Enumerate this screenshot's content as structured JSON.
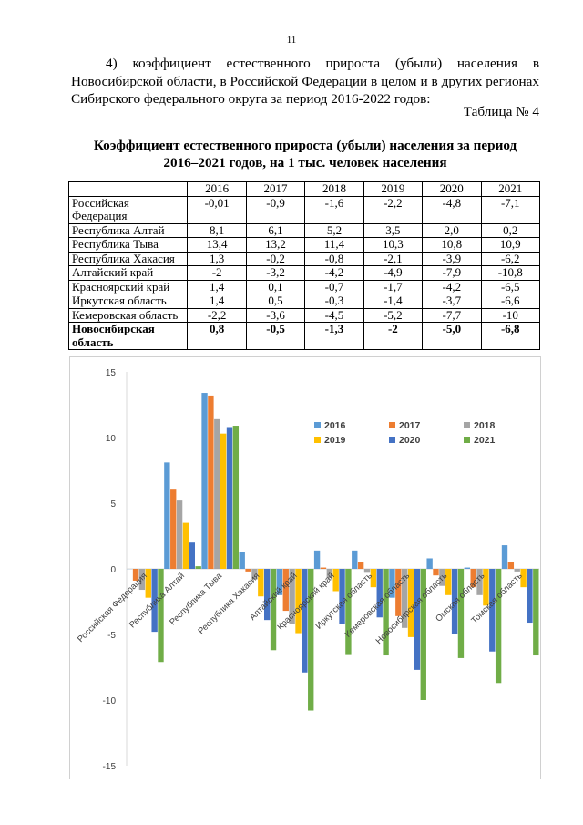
{
  "page_number": "11",
  "intro": "4) коэффициент естественного прироста (убыли) населения в Новосибирской области, в Российской Федерации в целом и в других регионах Сибирского федерального округа за период 2016-2022 годов:",
  "table_label": "Таблица № 4",
  "table_title_line1": "Коэффициент естественного прироста (убыли) населения за период",
  "table_title_line2": "2016–2021 годов, на 1 тыс. человек населения",
  "table": {
    "headers": [
      "",
      "2016",
      "2017",
      "2018",
      "2019",
      "2020",
      "2021"
    ],
    "rows": [
      {
        "name": "Российская Федерация",
        "values": [
          "-0,01",
          "-0,9",
          "-1,6",
          "-2,2",
          "-4,8",
          "-7,1"
        ]
      },
      {
        "name": "Республика Алтай",
        "values": [
          "8,1",
          "6,1",
          "5,2",
          "3,5",
          "2,0",
          "0,2"
        ]
      },
      {
        "name": "Республика Тыва",
        "values": [
          "13,4",
          "13,2",
          "11,4",
          "10,3",
          "10,8",
          "10,9"
        ]
      },
      {
        "name": "Республика Хакасия",
        "values": [
          "1,3",
          "-0,2",
          "-0,8",
          "-2,1",
          "-3,9",
          "-6,2"
        ]
      },
      {
        "name": "Алтайский край",
        "values": [
          "-2",
          "-3,2",
          "-4,2",
          "-4,9",
          "-7,9",
          "-10,8"
        ]
      },
      {
        "name": "Красноярский край",
        "values": [
          "1,4",
          "0,1",
          "-0,7",
          "-1,7",
          "-4,2",
          "-6,5"
        ]
      },
      {
        "name": "Иркутская область",
        "values": [
          "1,4",
          "0,5",
          "-0,3",
          "-1,4",
          "-3,7",
          "-6,6"
        ]
      },
      {
        "name": "Кемеровская область",
        "values": [
          "-2,2",
          "-3,6",
          "-4,5",
          "-5,2",
          "-7,7",
          "-10"
        ]
      },
      {
        "name": "Новосибирская область",
        "values": [
          "0,8",
          "-0,5",
          "-1,3",
          "-2",
          "-5,0",
          "-6,8"
        ],
        "bold": true
      }
    ]
  },
  "chart_data": {
    "type": "bar",
    "categories": [
      "Российская Федерация",
      "Республика Алтай",
      "Республика Тыва",
      "Республика Хакасия",
      "Алтайский край",
      "Красноярский край",
      "Иркутская область",
      "Кемеровская область",
      "Новосибирская область",
      "Омская область",
      "Томская область"
    ],
    "series": [
      {
        "name": "2016",
        "color": "#5b9bd5",
        "values": [
          -0.01,
          8.1,
          13.4,
          1.3,
          -2,
          1.4,
          1.4,
          -2.2,
          0.8,
          0.1,
          1.8
        ]
      },
      {
        "name": "2017",
        "color": "#ed7d31",
        "values": [
          -0.9,
          6.1,
          13.2,
          -0.2,
          -3.2,
          0.1,
          0.5,
          -3.6,
          -0.5,
          -1.4,
          0.5
        ]
      },
      {
        "name": "2018",
        "color": "#a5a5a5",
        "values": [
          -1.6,
          5.2,
          11.4,
          -0.8,
          -4.2,
          -0.7,
          -0.3,
          -4.5,
          -1.3,
          -2.0,
          -0.2
        ]
      },
      {
        "name": "2019",
        "color": "#ffc000",
        "values": [
          -2.2,
          3.5,
          10.3,
          -2.1,
          -4.9,
          -1.7,
          -1.4,
          -5.2,
          -2,
          -2.8,
          -1.4
        ]
      },
      {
        "name": "2020",
        "color": "#4472c4",
        "values": [
          -4.8,
          2.0,
          10.8,
          -3.9,
          -7.9,
          -4.2,
          -3.7,
          -7.7,
          -5.0,
          -6.3,
          -4.1
        ]
      },
      {
        "name": "2021",
        "color": "#70ad47",
        "values": [
          -7.1,
          0.2,
          10.9,
          -6.2,
          -10.8,
          -6.5,
          -6.6,
          -10,
          -6.8,
          -8.7,
          -6.6
        ]
      }
    ],
    "yticks": [
      "15",
      "10",
      "5",
      "0",
      "-5",
      "-10",
      "-15"
    ],
    "ylim": [
      -15,
      15
    ],
    "grid": false,
    "legend": "top-right"
  }
}
